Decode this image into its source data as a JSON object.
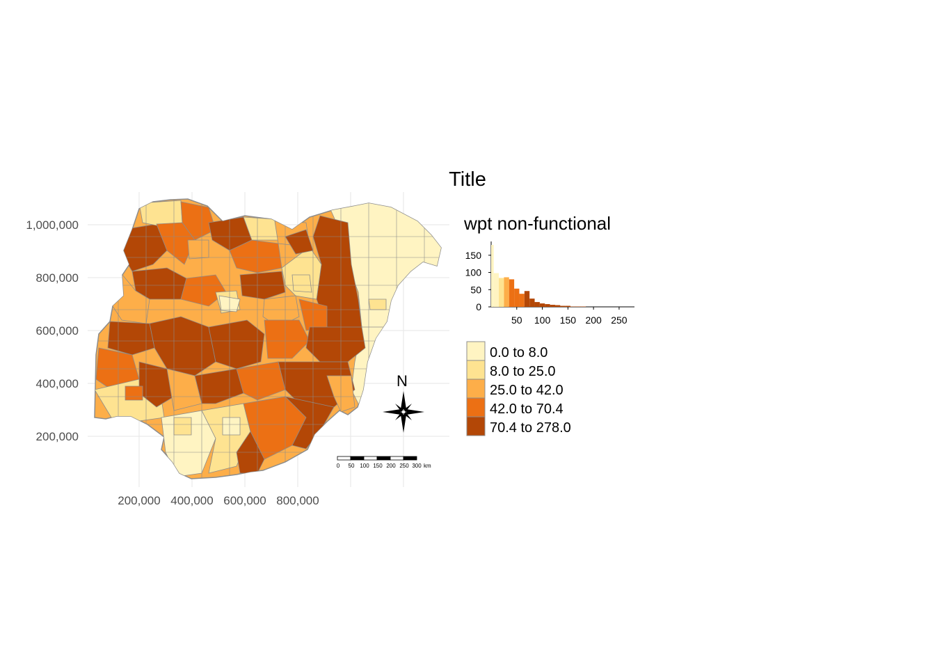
{
  "title": "Title",
  "map": {
    "country": "Nigeria",
    "y_ticks": [
      "1,000,000",
      "800,000",
      "600,000",
      "400,000",
      "200,000"
    ],
    "x_ticks": [
      "200,000",
      "400,000",
      "600,000",
      "800,000"
    ],
    "colors": {
      "class1": "#fff4c2",
      "class2": "#fee391",
      "class3": "#fdae49",
      "class4": "#ec7014",
      "class5": "#b34706",
      "border": "#8c8c8c",
      "grid": "#e6e6e6"
    }
  },
  "legend": {
    "title": "wpt non-functional",
    "classes": [
      {
        "label": "0.0 to 8.0",
        "color": "#fff4c2"
      },
      {
        "label": "8.0 to 25.0",
        "color": "#fee391"
      },
      {
        "label": "25.0 to 42.0",
        "color": "#fdae49"
      },
      {
        "label": "42.0 to 70.4",
        "color": "#ec7014"
      },
      {
        "label": "70.4 to 278.0",
        "color": "#b34706"
      }
    ]
  },
  "chart_data": {
    "type": "bar",
    "title": "",
    "x_ticks": [
      "50",
      "100",
      "150",
      "200",
      "250"
    ],
    "y_ticks": [
      "150",
      "100",
      "50",
      "0"
    ],
    "xlim": [
      0,
      280
    ],
    "ylim": [
      0,
      190
    ],
    "bins": [
      {
        "x0": 0,
        "x1": 5,
        "count": 180,
        "color": "#fff4c2"
      },
      {
        "x0": 5,
        "x1": 15,
        "count": 98,
        "color": "#fff4c2"
      },
      {
        "x0": 15,
        "x1": 25,
        "count": 84,
        "color": "#fee391"
      },
      {
        "x0": 25,
        "x1": 35,
        "count": 86,
        "color": "#fdae49"
      },
      {
        "x0": 35,
        "x1": 45,
        "count": 80,
        "color": "#ec7014"
      },
      {
        "x0": 45,
        "x1": 55,
        "count": 53,
        "color": "#ec7014"
      },
      {
        "x0": 55,
        "x1": 65,
        "count": 38,
        "color": "#ec7014"
      },
      {
        "x0": 65,
        "x1": 75,
        "count": 46,
        "color": "#b34706"
      },
      {
        "x0": 75,
        "x1": 85,
        "count": 24,
        "color": "#b34706"
      },
      {
        "x0": 85,
        "x1": 95,
        "count": 14,
        "color": "#b34706"
      },
      {
        "x0": 95,
        "x1": 105,
        "count": 10,
        "color": "#b34706"
      },
      {
        "x0": 105,
        "x1": 115,
        "count": 8,
        "color": "#b34706"
      },
      {
        "x0": 115,
        "x1": 125,
        "count": 6,
        "color": "#b34706"
      },
      {
        "x0": 125,
        "x1": 135,
        "count": 5,
        "color": "#b34706"
      },
      {
        "x0": 135,
        "x1": 145,
        "count": 3,
        "color": "#b34706"
      },
      {
        "x0": 145,
        "x1": 155,
        "count": 3,
        "color": "#b34706"
      },
      {
        "x0": 155,
        "x1": 165,
        "count": 1,
        "color": "#b34706"
      },
      {
        "x0": 165,
        "x1": 175,
        "count": 1,
        "color": "#b34706"
      },
      {
        "x0": 175,
        "x1": 185,
        "count": 1,
        "color": "#b34706"
      }
    ]
  },
  "compass": {
    "label": "N"
  },
  "scalebar": {
    "labels": [
      "0",
      "50",
      "100",
      "150",
      "200",
      "250",
      "300"
    ],
    "unit": "km"
  }
}
